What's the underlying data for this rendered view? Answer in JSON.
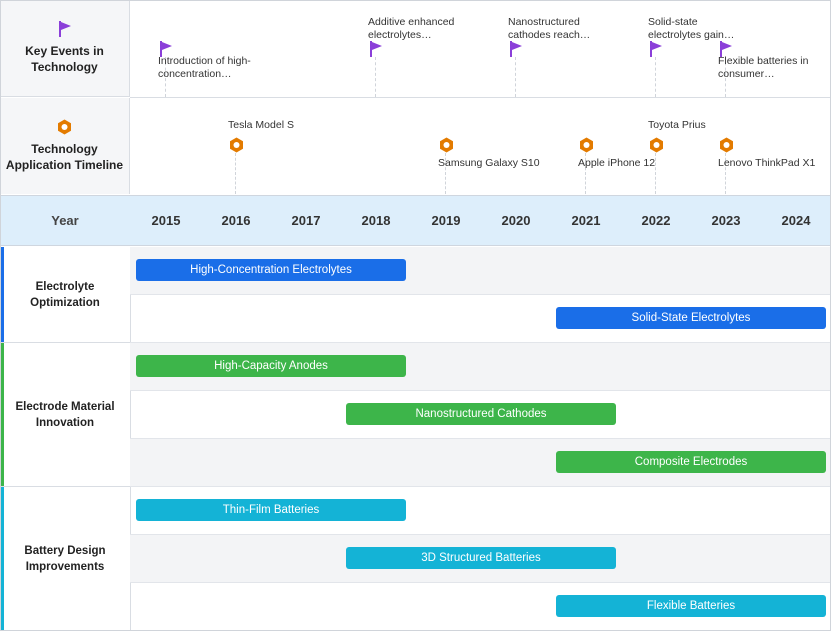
{
  "header": {
    "key_events_title": "Key Events in Technology",
    "app_timeline_title": "Technology Application Timeline",
    "year_label": "Year"
  },
  "years": [
    "2015",
    "2016",
    "2017",
    "2018",
    "2019",
    "2020",
    "2021",
    "2022",
    "2023",
    "2024"
  ],
  "colors": {
    "flag": "#8b3fd9",
    "hex": "#e37b00",
    "electrolyte": "#1a6ee8",
    "electrode": "#3db54a",
    "battery": "#14b3d6"
  },
  "key_events": [
    {
      "year": 2015,
      "text": "Introduction of high-concentration…",
      "position": "below",
      "icon": "flag-icon"
    },
    {
      "year": 2018,
      "text": "Additive enhanced electrolytes…",
      "position": "above",
      "icon": "flag-icon"
    },
    {
      "year": 2020,
      "text": "Nanostructured cathodes reach…",
      "position": "above",
      "icon": "flag-icon"
    },
    {
      "year": 2022,
      "text": "Solid-state electrolytes gain…",
      "position": "above",
      "icon": "flag-icon"
    },
    {
      "year": 2023,
      "text": "Flexible batteries in consumer…",
      "position": "below",
      "icon": "flag-icon"
    }
  ],
  "applications": [
    {
      "year": 2016,
      "text": "Tesla Model S",
      "position": "above",
      "icon": "hexagon-icon"
    },
    {
      "year": 2019,
      "text": "Samsung Galaxy S10",
      "position": "below",
      "icon": "hexagon-icon"
    },
    {
      "year": 2021,
      "text": "Apple iPhone 12",
      "position": "below",
      "icon": "hexagon-icon"
    },
    {
      "year": 2022,
      "text": "Toyota Prius",
      "position": "above",
      "icon": "hexagon-icon"
    },
    {
      "year": 2023,
      "text": "Lenovo ThinkPad X1",
      "position": "below",
      "icon": "hexagon-icon"
    }
  ],
  "categories": [
    {
      "name": "Electrolyte Optimization",
      "color_key": "electrolyte",
      "bars": [
        {
          "label": "High-Concentration Electrolytes",
          "start": 2015,
          "end": 2018
        },
        {
          "label": "Solid-State Electrolytes",
          "start": 2021,
          "end": 2024
        }
      ]
    },
    {
      "name": "Electrode Material Innovation",
      "color_key": "electrode",
      "bars": [
        {
          "label": "High-Capacity Anodes",
          "start": 2015,
          "end": 2018
        },
        {
          "label": "Nanostructured Cathodes",
          "start": 2018,
          "end": 2021
        },
        {
          "label": "Composite Electrodes",
          "start": 2021,
          "end": 2024
        }
      ]
    },
    {
      "name": "Battery Design Improvements",
      "color_key": "battery",
      "bars": [
        {
          "label": "Thin-Film Batteries",
          "start": 2015,
          "end": 2018
        },
        {
          "label": "3D Structured Batteries",
          "start": 2018,
          "end": 2021
        },
        {
          "label": "Flexible Batteries",
          "start": 2021,
          "end": 2024
        }
      ]
    }
  ]
}
